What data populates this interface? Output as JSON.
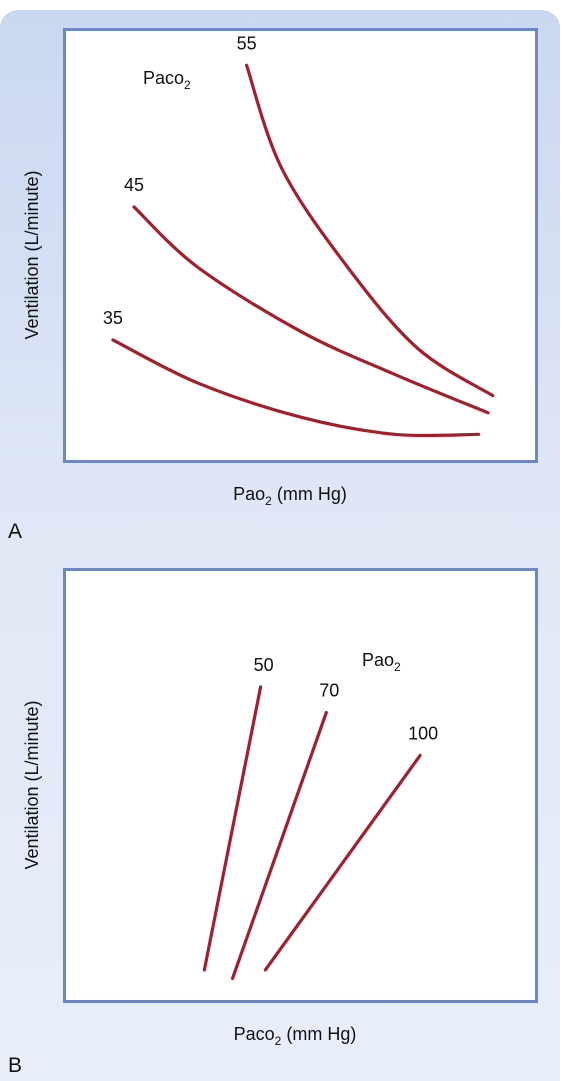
{
  "chart_data": [
    {
      "panel": "A",
      "type": "line",
      "xlabel": {
        "main": "Pao",
        "sub": "2",
        "unit": " (mm Hg)"
      },
      "ylabel": "Ventilation (L/minute)",
      "legend_title": {
        "main": "Paco",
        "sub": "2"
      },
      "x_ticks_shown": false,
      "y_ticks_shown": false,
      "grid": false,
      "series": [
        {
          "name": "55",
          "points": [
            [
              0.385,
              0.92
            ],
            [
              0.46,
              0.68
            ],
            [
              0.6,
              0.45
            ],
            [
              0.75,
              0.26
            ],
            [
              0.91,
              0.15
            ]
          ]
        },
        {
          "name": "45",
          "points": [
            [
              0.145,
              0.59
            ],
            [
              0.28,
              0.45
            ],
            [
              0.5,
              0.3
            ],
            [
              0.7,
              0.2
            ],
            [
              0.9,
              0.11
            ]
          ]
        },
        {
          "name": "35",
          "points": [
            [
              0.1,
              0.28
            ],
            [
              0.28,
              0.18
            ],
            [
              0.5,
              0.1
            ],
            [
              0.7,
              0.06
            ],
            [
              0.88,
              0.06
            ]
          ]
        }
      ]
    },
    {
      "panel": "B",
      "type": "line",
      "xlabel": {
        "main": "Paco",
        "sub": "2",
        "unit": " (mm Hg)"
      },
      "ylabel": "Ventilation (L/minute)",
      "legend_title": {
        "main": "Pao",
        "sub": "2"
      },
      "x_ticks_shown": false,
      "y_ticks_shown": false,
      "grid": false,
      "series": [
        {
          "name": "50",
          "points": [
            [
              0.295,
              0.07
            ],
            [
              0.415,
              0.73
            ]
          ]
        },
        {
          "name": "70",
          "points": [
            [
              0.355,
              0.05
            ],
            [
              0.555,
              0.67
            ]
          ]
        },
        {
          "name": "100",
          "points": [
            [
              0.425,
              0.07
            ],
            [
              0.755,
              0.57
            ]
          ]
        }
      ]
    }
  ],
  "panel_labels": {
    "a": "A",
    "b": "B"
  },
  "colors": {
    "curve": "#a61e2b",
    "frame": "#6f86c4",
    "background": "#d7e2f4"
  }
}
